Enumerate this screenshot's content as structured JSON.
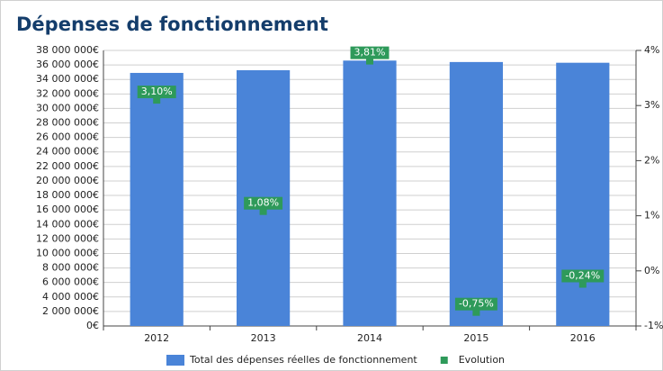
{
  "chart_data": {
    "type": "bar",
    "title": "Dépenses de fonctionnement",
    "categories": [
      "2012",
      "2013",
      "2014",
      "2015",
      "2016"
    ],
    "series": [
      {
        "name": "Total des dépenses réelles de fonctionnement",
        "color": "#4a84d8",
        "type": "bar",
        "values": [
          34900000,
          35270000,
          36600000,
          36400000,
          36300000
        ]
      },
      {
        "name": "Evolution",
        "color": "#2e9a5a",
        "type": "scatter",
        "axis": "y2",
        "values": [
          3.1,
          1.08,
          3.81,
          -0.75,
          -0.24
        ],
        "value_labels": [
          "3,10%",
          "1,08%",
          "3,81%",
          "-0,75%",
          "-0,24%"
        ]
      }
    ],
    "ylim": [
      0,
      38000000
    ],
    "yticks": [
      {
        "value": 0,
        "label": "0€"
      },
      {
        "value": 2000000,
        "label": "2 000 000€"
      },
      {
        "value": 4000000,
        "label": "4 000 000€"
      },
      {
        "value": 6000000,
        "label": "6 000 000€"
      },
      {
        "value": 8000000,
        "label": "8 000 000€"
      },
      {
        "value": 10000000,
        "label": "10 000 000€"
      },
      {
        "value": 12000000,
        "label": "12 000 000€"
      },
      {
        "value": 14000000,
        "label": "14 000 000€"
      },
      {
        "value": 16000000,
        "label": "16 000 000€"
      },
      {
        "value": 18000000,
        "label": "18 000 000€"
      },
      {
        "value": 20000000,
        "label": "20 000 000€"
      },
      {
        "value": 22000000,
        "label": "22 000 000€"
      },
      {
        "value": 24000000,
        "label": "24 000 000€"
      },
      {
        "value": 26000000,
        "label": "26 000 000€"
      },
      {
        "value": 28000000,
        "label": "28 000 000€"
      },
      {
        "value": 30000000,
        "label": "30 000 000€"
      },
      {
        "value": 32000000,
        "label": "32 000 000€"
      },
      {
        "value": 34000000,
        "label": "34 000 000€"
      },
      {
        "value": 36000000,
        "label": "36 000 000€"
      },
      {
        "value": 38000000,
        "label": "38 000 000€"
      }
    ],
    "y2lim": [
      -1,
      4
    ],
    "y2ticks": [
      {
        "value": -1,
        "label": "-1%"
      },
      {
        "value": 0,
        "label": "0%"
      },
      {
        "value": 1,
        "label": "1%"
      },
      {
        "value": 2,
        "label": "2%"
      },
      {
        "value": 3,
        "label": "3%"
      },
      {
        "value": 4,
        "label": "4%"
      }
    ],
    "grid": true,
    "legend": "bottom"
  }
}
